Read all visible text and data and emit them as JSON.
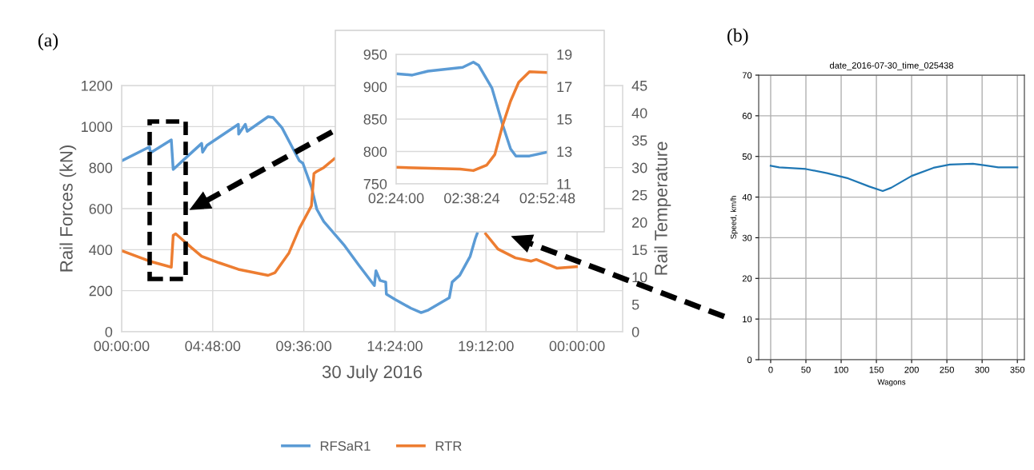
{
  "chart_data": [
    {
      "type": "line",
      "xlabel": "30 July 2016",
      "ylabel": "Rail Forces (kN)",
      "y2label": "Rail Temperature",
      "annotations": [
        "(a)"
      ],
      "xlim": [
        "2016-07-30T00:00",
        "2016-07-31T02:24"
      ],
      "xticks": [
        {
          "value": "2016-07-30T00:00",
          "label": "00:00:00"
        },
        {
          "value": "2016-07-30T04:48",
          "label": "04:48:00"
        },
        {
          "value": "2016-07-30T09:36",
          "label": "09:36:00"
        },
        {
          "value": "2016-07-30T14:24",
          "label": "14:24:00"
        },
        {
          "value": "2016-07-30T19:12",
          "label": "19:12:00"
        },
        {
          "value": "2016-07-31T00:00",
          "label": "00:00:00"
        }
      ],
      "ylim": [
        0,
        1200
      ],
      "yticks": [
        0,
        200,
        400,
        600,
        800,
        1000,
        1200
      ],
      "y2lim": [
        0,
        45
      ],
      "y2ticks": [
        0,
        5,
        10,
        15,
        20,
        25,
        30,
        35,
        40,
        45
      ],
      "grid": true,
      "legend": "bottom",
      "series": [
        {
          "name": "RFSaR1",
          "color": "#5b9bd5",
          "x": [
            "2016-07-30T00:00",
            "2016-07-30T01:28",
            "2016-07-30T01:31",
            "2016-07-30T02:37",
            "2016-07-30T02:43",
            "2016-07-30T03:19",
            "2016-07-30T04:13",
            "2016-07-30T04:16",
            "2016-07-30T04:30",
            "2016-07-30T06:09",
            "2016-07-30T06:10",
            "2016-07-30T06:31",
            "2016-07-30T06:37",
            "2016-07-30T07:43",
            "2016-07-30T07:59",
            "2016-07-30T08:27",
            "2016-07-30T09:22",
            "2016-07-30T09:33",
            "2016-07-30T10:00",
            "2016-07-30T10:17",
            "2016-07-30T10:39",
            "2016-07-30T11:45",
            "2016-07-30T12:29",
            "2016-07-30T13:19",
            "2016-07-30T13:24",
            "2016-07-30T13:37",
            "2016-07-30T13:55",
            "2016-07-30T13:57",
            "2016-07-30T14:25",
            "2016-07-30T15:14",
            "2016-07-30T15:47",
            "2016-07-30T16:10",
            "2016-07-30T17:16",
            "2016-07-30T17:25",
            "2016-07-30T17:49",
            "2016-07-30T18:22",
            "2016-07-30T18:38",
            "2016-07-30T18:44"
          ],
          "values": [
            833,
            901,
            872,
            935,
            791,
            842,
            918,
            875,
            909,
            1011,
            963,
            1011,
            977,
            1048,
            1044,
            994,
            833,
            821,
            706,
            597,
            537,
            419,
            326,
            225,
            297,
            250,
            242,
            183,
            157,
            115,
            93,
            106,
            166,
            242,
            275,
            368,
            453,
            478
          ]
        },
        {
          "name": "RTR",
          "color": "#ed7d31",
          "axis": "y2",
          "x": [
            "2016-07-30T00:00",
            "2016-07-30T01:28",
            "2016-07-30T02:37",
            "2016-07-30T02:43",
            "2016-07-30T02:51",
            "2016-07-30T03:40",
            "2016-07-30T04:13",
            "2016-07-30T05:08",
            "2016-07-30T06:09",
            "2016-07-30T07:43",
            "2016-07-30T08:05",
            "2016-07-30T08:49",
            "2016-07-30T09:22",
            "2016-07-30T10:00",
            "2016-07-30T10:08",
            "2016-07-30T10:17",
            "2016-07-30T10:39",
            "2016-07-30T11:12",
            "2016-07-30T15:00",
            "2016-07-30T19:11",
            "2016-07-30T19:50",
            "2016-07-30T20:45",
            "2016-07-30T21:35",
            "2016-07-30T21:51",
            "2016-07-30T22:57",
            "2016-07-30T23:58"
          ],
          "values": [
            14.8,
            12.9,
            11.8,
            17.6,
            17.9,
            15.4,
            13.8,
            12.6,
            11.4,
            10.3,
            10.8,
            14.4,
            18.9,
            23.0,
            28.9,
            29.3,
            30.0,
            31.6,
            null,
            17.9,
            15.1,
            13.5,
            12.9,
            13.2,
            11.6,
            11.9
          ]
        }
      ]
    },
    {
      "type": "line",
      "xlim": [
        "2016-07-30T02:24:00",
        "2016-07-30T02:52:48"
      ],
      "xticks": [
        {
          "value": "2016-07-30T02:24:00",
          "label": "02:24:00"
        },
        {
          "value": "2016-07-30T02:38:24",
          "label": "02:38:24"
        },
        {
          "value": "2016-07-30T02:52:48",
          "label": "02:52:48"
        }
      ],
      "ylim": [
        750,
        950
      ],
      "yticks": [
        750,
        800,
        850,
        900,
        950
      ],
      "y2lim": [
        11,
        19
      ],
      "y2ticks": [
        11,
        13,
        15,
        17,
        19
      ],
      "grid": "y",
      "series": [
        {
          "color": "#5b9bd5",
          "x": [
            "2016-07-30T02:24:00",
            "2016-07-30T02:27:04",
            "2016-07-30T02:30:04",
            "2016-07-30T02:36:40",
            "2016-07-30T02:38:42",
            "2016-07-30T02:39:43",
            "2016-07-30T02:42:14",
            "2016-07-30T02:44:17",
            "2016-07-30T02:45:47",
            "2016-07-30T02:46:48",
            "2016-07-30T02:49:23",
            "2016-07-30T02:52:48"
          ],
          "values": [
            920,
            918,
            924,
            930,
            938,
            933,
            898,
            841,
            804,
            793,
            793,
            799
          ]
        },
        {
          "color": "#ed7d31",
          "axis": "y2",
          "x": [
            "2016-07-30T02:24:00",
            "2016-07-30T02:36:11",
            "2016-07-30T02:38:42",
            "2016-07-30T02:41:13",
            "2016-07-30T02:42:47",
            "2016-07-30T02:44:17",
            "2016-07-30T02:45:47",
            "2016-07-30T02:47:20",
            "2016-07-30T02:49:23",
            "2016-07-30T02:52:48"
          ],
          "values": [
            12.02,
            11.91,
            11.82,
            12.15,
            12.81,
            14.63,
            16.11,
            17.27,
            17.93,
            17.88
          ]
        }
      ]
    },
    {
      "type": "line",
      "title": "date_2016-07-30_time_025438",
      "xlabel": "Wagons",
      "ylabel": "Speed, km/h",
      "annotations": [
        "(b)"
      ],
      "xlim": [
        -17,
        360
      ],
      "xticks": [
        0,
        50,
        100,
        150,
        200,
        250,
        300,
        350
      ],
      "ylim": [
        0,
        70
      ],
      "yticks": [
        0,
        10,
        20,
        30,
        40,
        50,
        60,
        70
      ],
      "grid": true,
      "series": [
        {
          "color": "#1f77b4",
          "x": [
            0,
            12,
            50,
            80,
            110,
            140,
            159,
            171,
            200,
            231,
            254,
            287,
            304,
            323,
            350
          ],
          "values": [
            47.7,
            47.3,
            46.9,
            45.9,
            44.6,
            42.6,
            41.5,
            42.3,
            45.2,
            47.2,
            48.0,
            48.2,
            47.8,
            47.3,
            47.3
          ]
        }
      ]
    }
  ]
}
